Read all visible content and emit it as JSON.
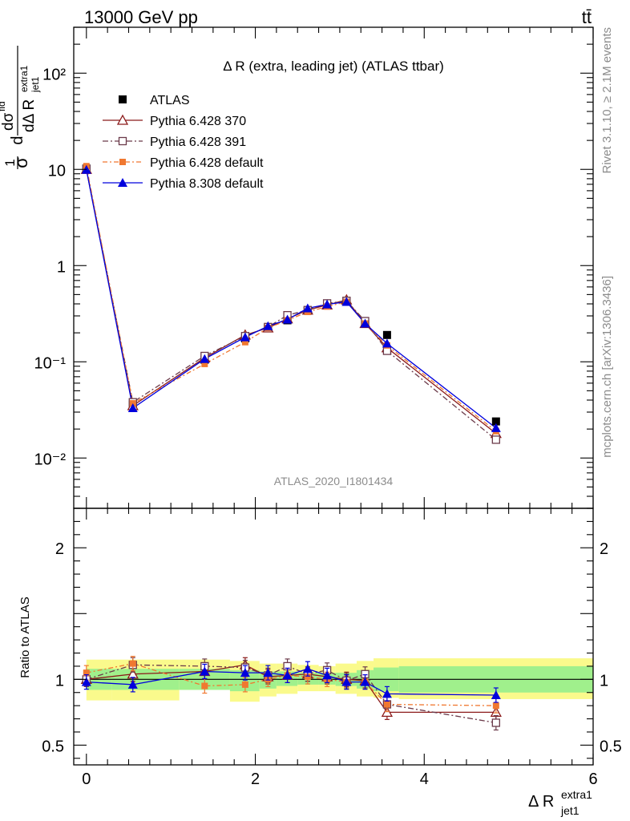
{
  "header": {
    "left_title": "13000 GeV pp",
    "right_title": "tt̄",
    "plot_title": "Δ R (extra, leading jet) (ATLAS ttbar)",
    "analysis_id": "ATLAS_2020_I1801434",
    "side_rivet": "Rivet 3.1.10, ≥ 2.1M events",
    "side_mcplots": "mcplots.cern.ch [arXiv:1306.3436]"
  },
  "chart_data": [
    {
      "type": "scatter",
      "role": "main",
      "title": "Δ R (extra, leading jet) (ATLAS ttbar)",
      "xlabel": "Δ R extra1 jet1",
      "ylabel": "1/σ dσ^fid / dΔ R extra1 jet1",
      "xlim": [
        -0.15,
        6.0
      ],
      "ylim": [
        0.003,
        300
      ],
      "yscale": "log",
      "ytick_values": [
        0.01,
        0.1,
        1,
        10,
        100
      ],
      "ytick_labels": [
        "10⁻²",
        "10⁻¹",
        "1",
        "10",
        "10²"
      ],
      "legend_position": "top-left",
      "x": [
        0.0,
        0.55,
        1.4,
        1.88,
        2.15,
        2.38,
        2.62,
        2.85,
        3.08,
        3.3,
        3.56,
        4.85
      ],
      "series": [
        {
          "name": "ATLAS",
          "color": "#000000",
          "marker": "square-filled",
          "values": [
            10.2,
            0.036,
            0.105,
            0.175,
            0.225,
            0.27,
            0.34,
            0.39,
            0.43,
            0.255,
            0.19,
            0.024
          ]
        },
        {
          "name": "Pythia 6.428 370",
          "color": "#8b1a1a",
          "marker": "triangle-open",
          "values": [
            10.0,
            0.035,
            0.11,
            0.19,
            0.225,
            0.28,
            0.345,
            0.39,
            0.44,
            0.25,
            0.14,
            0.018
          ]
        },
        {
          "name": "Pythia 6.428 391",
          "color": "#6b3a4a",
          "marker": "square-open",
          "values": [
            10.1,
            0.038,
            0.115,
            0.185,
            0.23,
            0.305,
            0.345,
            0.405,
            0.43,
            0.265,
            0.13,
            0.0155
          ]
        },
        {
          "name": "Pythia 6.428 default",
          "color": "#f07830",
          "marker": "square-filled-small",
          "values": [
            10.8,
            0.037,
            0.095,
            0.16,
            0.225,
            0.27,
            0.33,
            0.375,
            0.42,
            0.25,
            0.148,
            0.019
          ]
        },
        {
          "name": "Pythia 8.308 default",
          "color": "#0000dd",
          "marker": "triangle-filled",
          "values": [
            9.9,
            0.033,
            0.107,
            0.18,
            0.235,
            0.275,
            0.36,
            0.395,
            0.42,
            0.25,
            0.155,
            0.0205
          ]
        }
      ]
    },
    {
      "type": "scatter",
      "role": "ratio",
      "ylabel": "Ratio to ATLAS",
      "xlabel": "Δ R extra1 jet1",
      "xlim": [
        -0.15,
        6.0
      ],
      "ylim": [
        0.35,
        2.3
      ],
      "ytick_values": [
        0.5,
        1,
        2
      ],
      "ytick_labels": [
        "0.5",
        "1",
        "2"
      ],
      "xtick_values": [
        0,
        2,
        4,
        6
      ],
      "xtick_labels": [
        "0",
        "2",
        "4",
        "6"
      ],
      "bands": {
        "edges": [
          0.0,
          0.3,
          1.1,
          1.7,
          2.05,
          2.25,
          2.5,
          2.75,
          2.95,
          3.2,
          3.4,
          3.7,
          6.0
        ],
        "inner": [
          [
            0.92,
            1.08
          ],
          [
            0.92,
            1.08
          ],
          [
            0.92,
            1.08
          ],
          [
            0.91,
            1.07
          ],
          [
            0.93,
            1.06
          ],
          [
            0.95,
            1.06
          ],
          [
            0.96,
            1.05
          ],
          [
            0.96,
            1.05
          ],
          [
            0.95,
            1.05
          ],
          [
            0.93,
            1.07
          ],
          [
            0.91,
            1.09
          ],
          [
            0.9,
            1.1
          ]
        ],
        "outer": [
          [
            0.84,
            1.15
          ],
          [
            0.84,
            1.15
          ],
          [
            0.92,
            1.15
          ],
          [
            0.83,
            1.14
          ],
          [
            0.87,
            1.12
          ],
          [
            0.89,
            1.12
          ],
          [
            0.91,
            1.11
          ],
          [
            0.91,
            1.1
          ],
          [
            0.89,
            1.12
          ],
          [
            0.87,
            1.14
          ],
          [
            0.86,
            1.16
          ],
          [
            0.85,
            1.16
          ]
        ],
        "inner_color": "#a0f08c",
        "outer_color": "#fafa8c"
      },
      "x": [
        0.0,
        0.55,
        1.4,
        1.88,
        2.15,
        2.38,
        2.62,
        2.85,
        3.08,
        3.3,
        3.56,
        4.85
      ],
      "series": [
        {
          "name": "Pythia 6.428 370",
          "color": "#8b1a1a",
          "marker": "triangle-open",
          "values": [
            1.0,
            1.04,
            1.06,
            1.11,
            1.02,
            1.03,
            1.04,
            1.02,
            1.0,
            0.99,
            0.75,
            0.75
          ]
        },
        {
          "name": "Pythia 6.428 391",
          "color": "#6b3a4a",
          "marker": "square-open",
          "values": [
            1.0,
            1.11,
            1.1,
            1.09,
            1.03,
            1.1,
            1.04,
            1.07,
            0.99,
            1.04,
            0.81,
            0.67
          ]
        },
        {
          "name": "Pythia 6.428 default",
          "color": "#f07830",
          "marker": "square-filled-small",
          "values": [
            1.05,
            1.12,
            0.95,
            0.96,
            1.0,
            1.03,
            1.02,
            1.0,
            0.98,
            0.98,
            0.81,
            0.8
          ]
        },
        {
          "name": "Pythia 8.308 default",
          "color": "#0000dd",
          "marker": "triangle-filled",
          "values": [
            0.98,
            0.96,
            1.06,
            1.05,
            1.05,
            1.03,
            1.08,
            1.03,
            0.98,
            0.98,
            0.89,
            0.88
          ]
        }
      ]
    }
  ]
}
